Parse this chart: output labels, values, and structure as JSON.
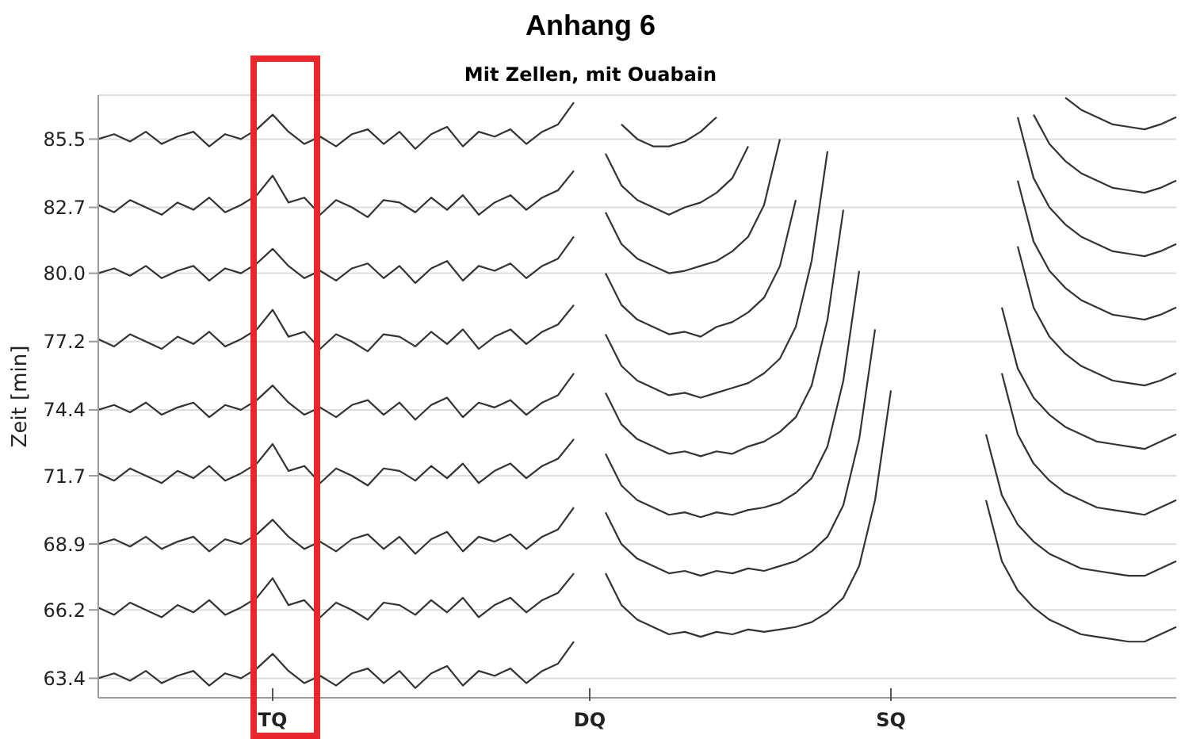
{
  "chart_data": {
    "type": "line",
    "title": "Anhang 6",
    "subtitle": "Mit Zellen, mit Ouabain",
    "ylabel": "Zeit [min]",
    "categories": [
      null,
      null,
      null,
      null,
      null,
      null,
      null,
      null,
      null,
      null,
      null,
      "TQ",
      null,
      null,
      null,
      null,
      null,
      null,
      null,
      null,
      null,
      null,
      null,
      null,
      null,
      null,
      null,
      null,
      null,
      null,
      null,
      "DQ",
      null,
      null,
      null,
      null,
      null,
      null,
      null,
      null,
      null,
      null,
      null,
      null,
      null,
      null,
      null,
      null,
      null,
      null,
      "SQ",
      null,
      null,
      null,
      null,
      null,
      null,
      null,
      null,
      null,
      null,
      null,
      null,
      null,
      null,
      null,
      null,
      null,
      null
    ],
    "series": [
      {
        "color": "#333333",
        "values": [
          63.4,
          63.6,
          63.3,
          63.7,
          63.2,
          63.5,
          63.7,
          63.1,
          63.6,
          63.4,
          63.8,
          64.4,
          63.7,
          63.2,
          63.5,
          63.1,
          63.6,
          63.8,
          63.2,
          63.7,
          63.0,
          63.6,
          63.9,
          63.1,
          63.7,
          63.5,
          63.8,
          63.2,
          63.7,
          64.0,
          64.9,
          null,
          67.7,
          66.4,
          65.8,
          65.5,
          65.2,
          65.3,
          65.1,
          65.3,
          65.2,
          65.4,
          65.3,
          65.4,
          65.5,
          65.7,
          66.1,
          66.7,
          68.0,
          70.7,
          75.2,
          null,
          null,
          null,
          null,
          null,
          70.7,
          68.2,
          67.0,
          66.3,
          65.8,
          65.5,
          65.2,
          65.1,
          65.0,
          64.9,
          64.9,
          65.2,
          65.5
        ]
      },
      {
        "color": "#333333",
        "values": [
          66.3,
          66.0,
          66.5,
          66.2,
          65.9,
          66.4,
          66.1,
          66.6,
          66.0,
          66.3,
          66.7,
          67.5,
          66.4,
          66.6,
          65.9,
          66.5,
          66.2,
          65.8,
          66.5,
          66.4,
          66.0,
          66.6,
          66.1,
          66.7,
          65.9,
          66.4,
          66.7,
          66.1,
          66.6,
          66.9,
          67.7,
          null,
          70.2,
          68.9,
          68.3,
          68.0,
          67.7,
          67.8,
          67.6,
          67.8,
          67.7,
          67.9,
          67.8,
          68.0,
          68.2,
          68.6,
          69.2,
          70.5,
          73.2,
          77.7,
          null,
          null,
          null,
          null,
          null,
          null,
          73.4,
          70.9,
          69.7,
          69.0,
          68.5,
          68.2,
          67.9,
          67.8,
          67.7,
          67.6,
          67.6,
          67.9,
          68.2
        ]
      },
      {
        "color": "#333333",
        "values": [
          68.9,
          69.1,
          68.8,
          69.2,
          68.7,
          69.0,
          69.2,
          68.6,
          69.1,
          68.9,
          69.3,
          69.9,
          69.2,
          68.7,
          69.0,
          68.6,
          69.1,
          69.3,
          68.7,
          69.2,
          68.5,
          69.1,
          69.4,
          68.6,
          69.2,
          69.0,
          69.3,
          68.7,
          69.2,
          69.5,
          70.4,
          null,
          72.6,
          71.3,
          70.7,
          70.4,
          70.1,
          70.2,
          70.0,
          70.2,
          70.1,
          70.3,
          70.4,
          70.6,
          71.0,
          71.6,
          72.9,
          75.6,
          80.1,
          null,
          null,
          null,
          null,
          null,
          null,
          null,
          null,
          75.9,
          73.4,
          72.2,
          71.5,
          71.0,
          70.7,
          70.4,
          70.3,
          70.2,
          70.1,
          70.4,
          70.7
        ]
      },
      {
        "color": "#333333",
        "values": [
          71.8,
          71.5,
          72.0,
          71.7,
          71.4,
          71.9,
          71.6,
          72.1,
          71.5,
          71.8,
          72.2,
          73.0,
          71.9,
          72.1,
          71.4,
          72.0,
          71.7,
          71.3,
          72.0,
          71.9,
          71.5,
          72.1,
          71.6,
          72.2,
          71.4,
          71.9,
          72.2,
          71.6,
          72.1,
          72.4,
          73.2,
          null,
          75.1,
          73.8,
          73.2,
          72.9,
          72.6,
          72.7,
          72.5,
          72.7,
          72.6,
          72.9,
          73.1,
          73.5,
          74.1,
          75.4,
          78.1,
          82.6,
          null,
          null,
          null,
          null,
          null,
          null,
          null,
          null,
          null,
          78.6,
          76.1,
          74.9,
          74.2,
          73.7,
          73.4,
          73.1,
          73.0,
          72.9,
          72.8,
          73.1,
          73.4
        ]
      },
      {
        "color": "#333333",
        "values": [
          74.4,
          74.6,
          74.3,
          74.7,
          74.2,
          74.5,
          74.7,
          74.1,
          74.6,
          74.4,
          74.8,
          75.4,
          74.7,
          74.2,
          74.5,
          74.1,
          74.6,
          74.8,
          74.2,
          74.7,
          74.0,
          74.6,
          74.9,
          74.1,
          74.7,
          74.5,
          74.8,
          74.2,
          74.7,
          75.0,
          75.9,
          null,
          77.5,
          76.2,
          75.6,
          75.3,
          75.0,
          75.1,
          74.9,
          75.1,
          75.3,
          75.5,
          75.9,
          76.5,
          77.8,
          80.5,
          85.0,
          null,
          null,
          null,
          null,
          null,
          null,
          null,
          null,
          null,
          null,
          null,
          81.1,
          78.6,
          77.4,
          76.7,
          76.2,
          75.9,
          75.6,
          75.5,
          75.4,
          75.6,
          75.9
        ]
      },
      {
        "color": "#333333",
        "values": [
          77.3,
          77.0,
          77.5,
          77.2,
          76.9,
          77.4,
          77.1,
          77.6,
          77.0,
          77.3,
          77.7,
          78.5,
          77.4,
          77.6,
          76.9,
          77.5,
          77.2,
          76.8,
          77.5,
          77.4,
          77.0,
          77.6,
          77.1,
          77.7,
          76.9,
          77.4,
          77.7,
          77.1,
          77.6,
          77.9,
          78.7,
          null,
          80.0,
          78.7,
          78.1,
          77.8,
          77.5,
          77.6,
          77.4,
          77.8,
          78.0,
          78.4,
          79.0,
          80.3,
          83.0,
          null,
          null,
          null,
          null,
          null,
          null,
          null,
          null,
          null,
          null,
          null,
          null,
          null,
          83.8,
          81.3,
          80.1,
          79.4,
          78.9,
          78.6,
          78.3,
          78.2,
          78.1,
          78.3,
          78.6
        ]
      },
      {
        "color": "#333333",
        "values": [
          80.0,
          80.2,
          79.9,
          80.3,
          79.8,
          80.1,
          80.3,
          79.7,
          80.2,
          80.0,
          80.4,
          81.0,
          80.3,
          79.8,
          80.1,
          79.7,
          80.2,
          80.4,
          79.8,
          80.3,
          79.6,
          80.2,
          80.5,
          79.7,
          80.3,
          80.1,
          80.4,
          79.8,
          80.3,
          80.6,
          81.5,
          null,
          82.5,
          81.2,
          80.6,
          80.3,
          80.0,
          80.1,
          80.3,
          80.5,
          80.9,
          81.5,
          82.8,
          85.5,
          null,
          null,
          null,
          null,
          null,
          null,
          null,
          null,
          null,
          null,
          null,
          null,
          null,
          null,
          86.4,
          83.9,
          82.7,
          82.0,
          81.5,
          81.2,
          80.9,
          80.8,
          80.7,
          80.9,
          81.2
        ]
      },
      {
        "color": "#333333",
        "values": [
          82.8,
          82.5,
          83.0,
          82.7,
          82.4,
          82.9,
          82.6,
          83.1,
          82.5,
          82.8,
          83.2,
          84.0,
          82.9,
          83.1,
          82.4,
          83.0,
          82.7,
          82.3,
          83.0,
          82.9,
          82.5,
          83.1,
          82.6,
          83.2,
          82.4,
          82.9,
          83.2,
          82.6,
          83.1,
          83.4,
          84.2,
          null,
          84.9,
          83.6,
          83.0,
          82.7,
          82.4,
          82.7,
          82.9,
          83.3,
          83.9,
          85.2,
          null,
          null,
          null,
          null,
          null,
          null,
          null,
          null,
          null,
          null,
          null,
          null,
          null,
          null,
          null,
          null,
          null,
          86.5,
          85.3,
          84.6,
          84.1,
          83.8,
          83.5,
          83.4,
          83.3,
          83.5,
          83.8
        ]
      },
      {
        "color": "#333333",
        "values": [
          85.5,
          85.7,
          85.4,
          85.8,
          85.3,
          85.6,
          85.8,
          85.2,
          85.7,
          85.5,
          85.9,
          86.5,
          85.8,
          85.3,
          85.6,
          85.2,
          85.7,
          85.9,
          85.3,
          85.8,
          85.1,
          85.7,
          86.0,
          85.2,
          85.8,
          85.6,
          85.9,
          85.3,
          85.8,
          86.1,
          87.0,
          null,
          null,
          86.1,
          85.5,
          85.2,
          85.2,
          85.4,
          85.8,
          86.4,
          null,
          null,
          null,
          null,
          null,
          null,
          null,
          null,
          null,
          null,
          null,
          null,
          null,
          null,
          null,
          null,
          null,
          null,
          null,
          null,
          null,
          87.2,
          86.7,
          86.4,
          86.1,
          86.0,
          85.9,
          86.1,
          86.4
        ]
      }
    ],
    "ylim": [
      62.6,
      87.3
    ],
    "yticks": [
      63.4,
      66.2,
      68.9,
      71.7,
      74.4,
      77.2,
      {
        "value": 80,
        "label": "80.0"
      },
      82.7,
      85.5
    ],
    "grid": "y",
    "marker": "none",
    "line_style": "solid"
  }
}
